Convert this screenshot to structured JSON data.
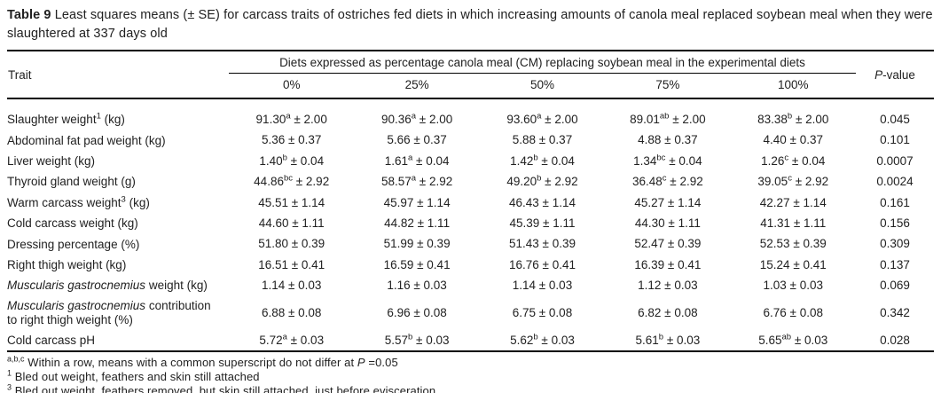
{
  "title_parts": [
    {
      "text": "Table 9",
      "style": "bold"
    },
    {
      "text": " Least squares means (± SE) for carcass traits of ostriches fed diets in which increasing amounts of canola meal replaced soybean meal when they were slaughtered at 337 days old",
      "style": "normal"
    }
  ],
  "table": {
    "trait_header": "Trait",
    "diet_group_header": "Diets expressed as percentage canola meal (CM) replacing soybean meal in the experimental diets",
    "diet_levels": [
      "0%",
      "25%",
      "50%",
      "75%",
      "100%"
    ],
    "p_value_header_parts": [
      {
        "text": "P",
        "style": "italic"
      },
      {
        "text": "-value",
        "style": "normal"
      }
    ],
    "rows": [
      {
        "trait_parts": [
          {
            "text": "Slaughter weight",
            "style": "normal"
          },
          {
            "text": "1",
            "style": "sup"
          },
          {
            "text": " (kg)",
            "style": "normal"
          }
        ],
        "cells": [
          {
            "mean": "91.30",
            "sup": "a",
            "se": "2.00"
          },
          {
            "mean": "90.36",
            "sup": "a",
            "se": "2.00"
          },
          {
            "mean": "93.60",
            "sup": "a",
            "se": "2.00"
          },
          {
            "mean": "89.01",
            "sup": "ab",
            "se": "2.00"
          },
          {
            "mean": "83.38",
            "sup": "b",
            "se": "2.00"
          }
        ],
        "p_value": "0.045"
      },
      {
        "trait_parts": [
          {
            "text": "Abdominal fat pad weight (kg)",
            "style": "normal"
          }
        ],
        "cells": [
          {
            "mean": "5.36",
            "sup": "",
            "se": "0.37"
          },
          {
            "mean": "5.66",
            "sup": "",
            "se": "0.37"
          },
          {
            "mean": "5.88",
            "sup": "",
            "se": "0.37"
          },
          {
            "mean": "4.88",
            "sup": "",
            "se": "0.37"
          },
          {
            "mean": "4.40",
            "sup": "",
            "se": "0.37"
          }
        ],
        "p_value": "0.101"
      },
      {
        "trait_parts": [
          {
            "text": "Liver weight (kg)",
            "style": "normal"
          }
        ],
        "cells": [
          {
            "mean": "1.40",
            "sup": "b",
            "se": "0.04"
          },
          {
            "mean": "1.61",
            "sup": "a",
            "se": "0.04"
          },
          {
            "mean": "1.42",
            "sup": "b",
            "se": "0.04"
          },
          {
            "mean": "1.34",
            "sup": "bc",
            "se": "0.04"
          },
          {
            "mean": "1.26",
            "sup": "c",
            "se": "0.04"
          }
        ],
        "p_value": "0.0007"
      },
      {
        "trait_parts": [
          {
            "text": "Thyroid gland weight (g)",
            "style": "normal"
          }
        ],
        "cells": [
          {
            "mean": "44.86",
            "sup": "bc",
            "se": "2.92"
          },
          {
            "mean": "58.57",
            "sup": "a",
            "se": "2.92"
          },
          {
            "mean": "49.20",
            "sup": "b",
            "se": "2.92"
          },
          {
            "mean": "36.48",
            "sup": "c",
            "se": "2.92"
          },
          {
            "mean": "39.05",
            "sup": "c",
            "se": "2.92"
          }
        ],
        "p_value": "0.0024"
      },
      {
        "trait_parts": [
          {
            "text": "Warm carcass weight",
            "style": "normal"
          },
          {
            "text": "3",
            "style": "sup"
          },
          {
            "text": " (kg)",
            "style": "normal"
          }
        ],
        "cells": [
          {
            "mean": "45.51",
            "sup": "",
            "se": "1.14"
          },
          {
            "mean": "45.97",
            "sup": "",
            "se": "1.14"
          },
          {
            "mean": "46.43",
            "sup": "",
            "se": "1.14"
          },
          {
            "mean": "45.27",
            "sup": "",
            "se": "1.14"
          },
          {
            "mean": "42.27",
            "sup": "",
            "se": "1.14"
          }
        ],
        "p_value": "0.161"
      },
      {
        "trait_parts": [
          {
            "text": "Cold carcass weight (kg)",
            "style": "normal"
          }
        ],
        "cells": [
          {
            "mean": "44.60",
            "sup": "",
            "se": "1.11"
          },
          {
            "mean": "44.82",
            "sup": "",
            "se": "1.11"
          },
          {
            "mean": "45.39",
            "sup": "",
            "se": "1.11"
          },
          {
            "mean": "44.30",
            "sup": "",
            "se": "1.11"
          },
          {
            "mean": "41.31",
            "sup": "",
            "se": "1.11"
          }
        ],
        "p_value": "0.156"
      },
      {
        "trait_parts": [
          {
            "text": "Dressing percentage (%)",
            "style": "normal"
          }
        ],
        "cells": [
          {
            "mean": "51.80",
            "sup": "",
            "se": "0.39"
          },
          {
            "mean": "51.99",
            "sup": "",
            "se": "0.39"
          },
          {
            "mean": "51.43",
            "sup": "",
            "se": "0.39"
          },
          {
            "mean": "52.47",
            "sup": "",
            "se": "0.39"
          },
          {
            "mean": "52.53",
            "sup": "",
            "se": "0.39"
          }
        ],
        "p_value": "0.309"
      },
      {
        "trait_parts": [
          {
            "text": "Right thigh weight (kg)",
            "style": "normal"
          }
        ],
        "cells": [
          {
            "mean": "16.51",
            "sup": "",
            "se": "0.41"
          },
          {
            "mean": "16.59",
            "sup": "",
            "se": "0.41"
          },
          {
            "mean": "16.76",
            "sup": "",
            "se": "0.41"
          },
          {
            "mean": "16.39",
            "sup": "",
            "se": "0.41"
          },
          {
            "mean": "15.24",
            "sup": "",
            "se": "0.41"
          }
        ],
        "p_value": "0.137"
      },
      {
        "trait_parts": [
          {
            "text": "Muscularis gastrocnemius",
            "style": "italic"
          },
          {
            "text": " weight (kg)",
            "style": "normal"
          }
        ],
        "cells": [
          {
            "mean": "1.14",
            "sup": "",
            "se": "0.03"
          },
          {
            "mean": "1.16",
            "sup": "",
            "se": "0.03"
          },
          {
            "mean": "1.14",
            "sup": "",
            "se": "0.03"
          },
          {
            "mean": "1.12",
            "sup": "",
            "se": "0.03"
          },
          {
            "mean": "1.03",
            "sup": "",
            "se": "0.03"
          }
        ],
        "p_value": "0.069"
      },
      {
        "trait_parts": [
          {
            "text": "Muscularis gastrocnemius",
            "style": "italic"
          },
          {
            "text": " contribution to right thigh weight (%)",
            "style": "normal"
          }
        ],
        "cells": [
          {
            "mean": "6.88",
            "sup": "",
            "se": "0.08"
          },
          {
            "mean": "6.96",
            "sup": "",
            "se": "0.08"
          },
          {
            "mean": "6.75",
            "sup": "",
            "se": "0.08"
          },
          {
            "mean": "6.82",
            "sup": "",
            "se": "0.08"
          },
          {
            "mean": "6.76",
            "sup": "",
            "se": "0.08"
          }
        ],
        "p_value": "0.342"
      },
      {
        "trait_parts": [
          {
            "text": "Cold carcass pH",
            "style": "normal"
          }
        ],
        "cells": [
          {
            "mean": "5.72",
            "sup": "a",
            "se": "0.03"
          },
          {
            "mean": "5.57",
            "sup": "b",
            "se": "0.03"
          },
          {
            "mean": "5.62",
            "sup": "b",
            "se": "0.03"
          },
          {
            "mean": "5.61",
            "sup": "b",
            "se": "0.03"
          },
          {
            "mean": "5.65",
            "sup": "ab",
            "se": "0.03"
          }
        ],
        "p_value": "0.028"
      }
    ]
  },
  "footnotes": [
    {
      "parts": [
        {
          "text": "a,b,c",
          "style": "sup"
        },
        {
          "text": " Within a row, means with a common superscript do not differ at ",
          "style": "normal"
        },
        {
          "text": "P",
          "style": "italic"
        },
        {
          "text": " =0.05",
          "style": "normal"
        }
      ]
    },
    {
      "parts": [
        {
          "text": "1",
          "style": "sup"
        },
        {
          "text": " Bled out weight, feathers and skin still attached",
          "style": "normal"
        }
      ]
    },
    {
      "parts": [
        {
          "text": "3",
          "style": "sup"
        },
        {
          "text": " Bled out weight, feathers removed, but skin still attached, just before evisceration",
          "style": "normal"
        }
      ]
    }
  ],
  "colors": {
    "text": "#212121",
    "rule": "#000000",
    "background": "#ffffff"
  }
}
